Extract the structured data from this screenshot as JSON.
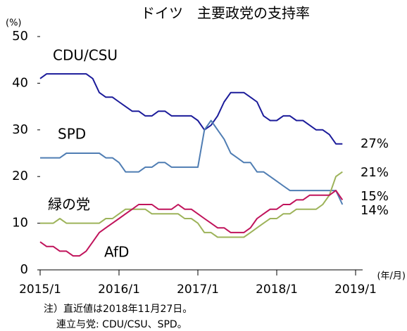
{
  "chart_data": {
    "type": "line",
    "title": "ドイツ　主要政党の支持率",
    "y_unit": "(%)",
    "x_unit": "(年/月)",
    "notes": [
      "注）直近値は2018年11月27日。",
      "連立与党: CDU/CSU、SPD。"
    ],
    "x": [
      "2015/1",
      "2015/2",
      "2015/3",
      "2015/4",
      "2015/5",
      "2015/6",
      "2015/7",
      "2015/8",
      "2015/9",
      "2015/10",
      "2015/11",
      "2015/12",
      "2016/1",
      "2016/2",
      "2016/3",
      "2016/4",
      "2016/5",
      "2016/6",
      "2016/7",
      "2016/8",
      "2016/9",
      "2016/10",
      "2016/11",
      "2016/12",
      "2017/1",
      "2017/2",
      "2017/3",
      "2017/4",
      "2017/5",
      "2017/6",
      "2017/7",
      "2017/8",
      "2017/9",
      "2017/10",
      "2017/11",
      "2017/12",
      "2018/1",
      "2018/2",
      "2018/3",
      "2018/4",
      "2018/5",
      "2018/6",
      "2018/7",
      "2018/8",
      "2018/9",
      "2018/10",
      "2018/11"
    ],
    "xlim": [
      "2015/1",
      "2019/1"
    ],
    "xticks": [
      "2015/1",
      "2016/1",
      "2017/1",
      "2018/1",
      "2019/1"
    ],
    "ylim": [
      0,
      50
    ],
    "yticks": [
      0,
      10,
      20,
      30,
      40,
      50
    ],
    "series": [
      {
        "name": "CDU/CSU",
        "color": "#1b1b9a",
        "end_label": "27%",
        "values": [
          41,
          42,
          42,
          42,
          42,
          42,
          42,
          42,
          41,
          38,
          37,
          37,
          36,
          35,
          34,
          34,
          33,
          33,
          34,
          34,
          33,
          33,
          33,
          33,
          32,
          30,
          31,
          33,
          36,
          38,
          38,
          38,
          37,
          36,
          33,
          32,
          32,
          33,
          33,
          32,
          32,
          31,
          30,
          30,
          29,
          27,
          27
        ]
      },
      {
        "name": "SPD",
        "color": "#4f7db3",
        "end_label": "14%",
        "values": [
          24,
          24,
          24,
          24,
          25,
          25,
          25,
          25,
          25,
          25,
          24,
          24,
          23,
          21,
          21,
          21,
          22,
          22,
          23,
          23,
          22,
          22,
          22,
          22,
          22,
          30,
          32,
          30,
          28,
          25,
          24,
          23,
          23,
          21,
          21,
          20,
          19,
          18,
          17,
          17,
          17,
          17,
          17,
          17,
          17,
          17,
          14
        ]
      },
      {
        "name": "緑の党",
        "color": "#9db35a",
        "end_label": "21%",
        "values": [
          10,
          10,
          10,
          11,
          10,
          10,
          10,
          10,
          10,
          10,
          11,
          11,
          12,
          13,
          13,
          13,
          13,
          12,
          12,
          12,
          12,
          12,
          11,
          11,
          10,
          8,
          8,
          7,
          7,
          7,
          7,
          7,
          8,
          9,
          10,
          11,
          11,
          12,
          12,
          13,
          13,
          13,
          13,
          14,
          16,
          20,
          21
        ]
      },
      {
        "name": "AfD",
        "color": "#c0135b",
        "end_label": "15%",
        "values": [
          6,
          5,
          5,
          4,
          4,
          3,
          3,
          4,
          6,
          8,
          9,
          10,
          11,
          12,
          13,
          14,
          14,
          14,
          13,
          13,
          13,
          14,
          13,
          13,
          12,
          11,
          10,
          9,
          9,
          8,
          8,
          8,
          9,
          11,
          12,
          13,
          13,
          14,
          14,
          15,
          15,
          16,
          16,
          16,
          16,
          17,
          15
        ]
      }
    ]
  }
}
